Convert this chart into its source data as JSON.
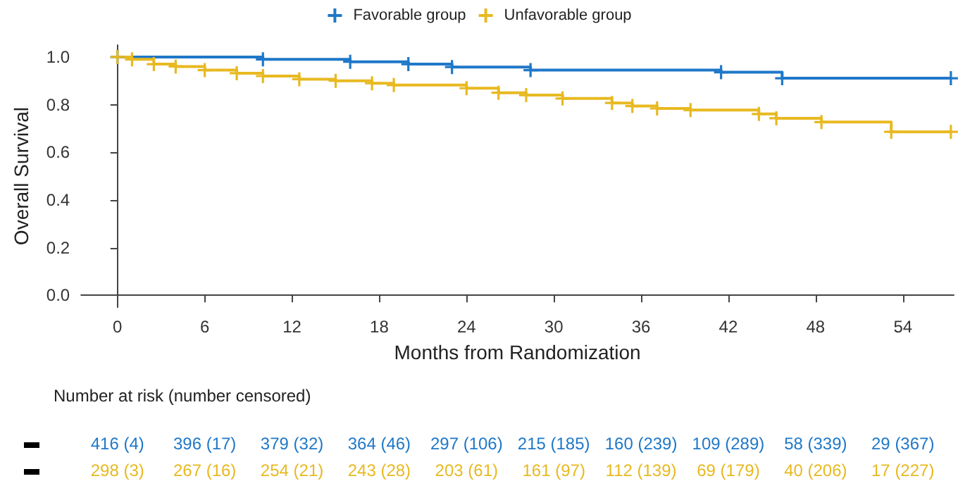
{
  "chart_data": [
    {
      "type": "step",
      "xlabel": "Months from Randomization",
      "ylabel": "Overall Survival",
      "xlim": [
        -2.5,
        57.5
      ],
      "ylim": [
        -0.05,
        1.05
      ],
      "xticks": [
        0,
        6,
        12,
        18,
        24,
        30,
        36,
        42,
        48,
        54
      ],
      "yticks": [
        {
          "value": 0,
          "label": "0.0"
        },
        {
          "value": 0.2,
          "label": "0.2"
        },
        {
          "value": 0.4,
          "label": "0.4"
        },
        {
          "value": 0.6,
          "label": "0.6"
        },
        {
          "value": 0.8,
          "label": "0.8"
        },
        {
          "value": 1,
          "label": "1.0"
        }
      ],
      "legend": "top",
      "marker": "cross",
      "line_style": "solid",
      "series": [
        {
          "name": "Favorable group",
          "color": "#1f78c8",
          "x": [
            0,
            10,
            16,
            20,
            23,
            28.4,
            41.5,
            45.7,
            57.3
          ],
          "values": [
            1,
            0.99,
            0.98,
            0.97,
            0.958,
            0.945,
            0.936,
            0.911,
            0.911
          ]
        },
        {
          "name": "Unfavorable group",
          "color": "#e8b921",
          "x": [
            0,
            1,
            2.5,
            4,
            6,
            8.2,
            10,
            12.5,
            15,
            17.5,
            19,
            24,
            26.2,
            28.1,
            30.6,
            34,
            35.4,
            37.1,
            39.4,
            44.1,
            45.3,
            48.4,
            53.2,
            57.3
          ],
          "values": [
            1,
            0.99,
            0.97,
            0.96,
            0.945,
            0.932,
            0.92,
            0.907,
            0.9,
            0.89,
            0.882,
            0.869,
            0.85,
            0.84,
            0.826,
            0.807,
            0.794,
            0.784,
            0.777,
            0.761,
            0.743,
            0.727,
            0.686,
            0.686
          ]
        }
      ]
    },
    {
      "type": "other",
      "title": "Number at risk (number censored)",
      "annotations": [
        "416 (4)",
        "396 (17)",
        "379 (32)",
        "364 (46)",
        "297 (106)",
        "215 (185)",
        "160 (239)",
        "109 (289)",
        "58 (339)",
        "29 (367)",
        "298 (3)",
        "267 (16)",
        "254 (21)",
        "243 (28)",
        "203 (61)",
        "161 (97)",
        "112 (139)",
        "69 (179)",
        "40 (206)",
        "17 (227)"
      ]
    }
  ]
}
